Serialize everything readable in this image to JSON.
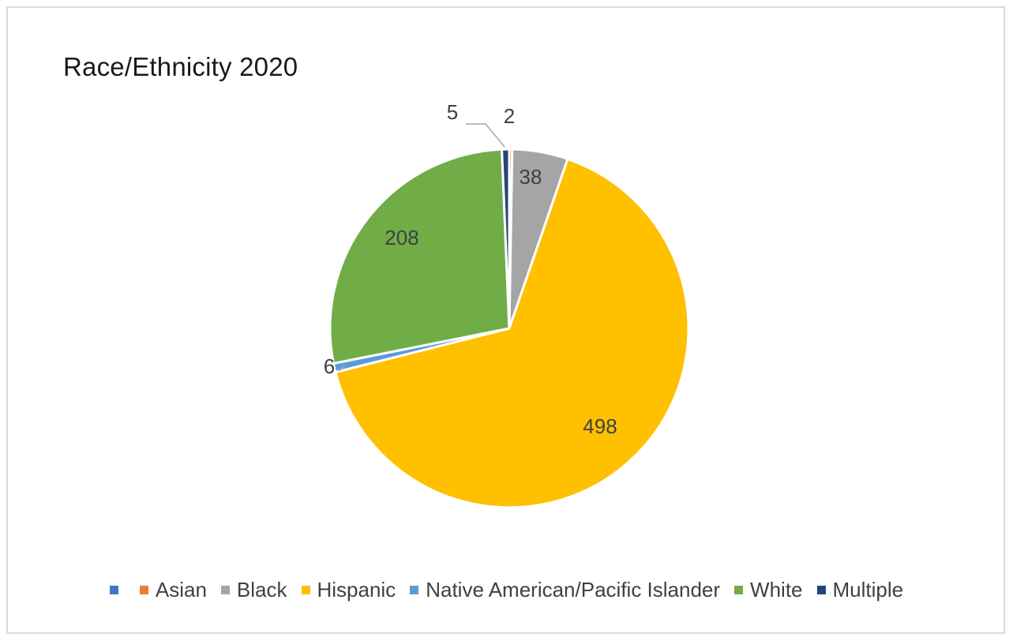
{
  "chart_data": {
    "type": "pie",
    "title": "Race/Ethnicity 2020",
    "categories": [
      "",
      "Asian",
      "Black",
      "Hispanic",
      "Native American/Pacific Islander",
      "White",
      "Multiple"
    ],
    "values": [
      0,
      2,
      38,
      498,
      6,
      208,
      5
    ],
    "data_labels": [
      "",
      "2",
      "38",
      "498",
      "6",
      "208",
      "5"
    ],
    "colors": [
      "#4472c4",
      "#ed7d31",
      "#a5a5a5",
      "#ffc000",
      "#5b9bd5",
      "#70ad47",
      "#264478"
    ],
    "legend_position": "bottom",
    "start_angle_deg": 0,
    "direction": "clockwise"
  }
}
